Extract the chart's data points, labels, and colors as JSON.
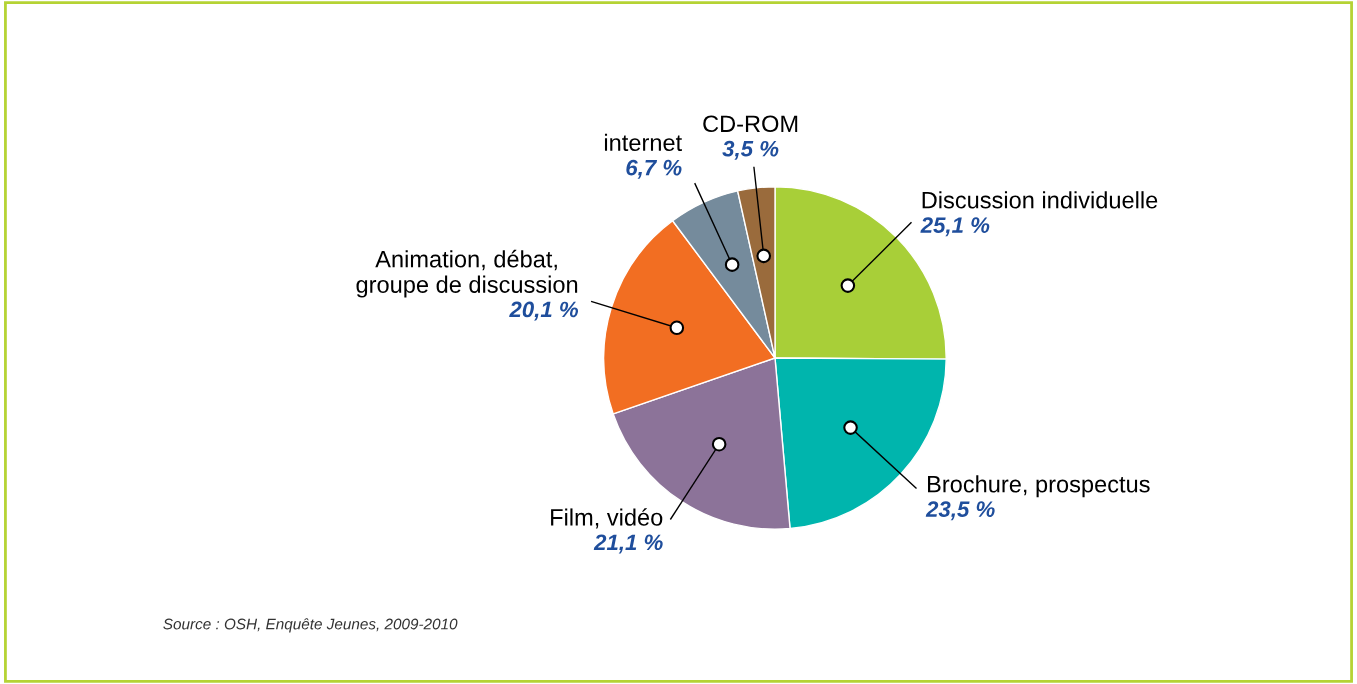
{
  "chart_data": {
    "type": "pie",
    "categories": [
      "Discussion individuelle",
      "Brochure, prospectus",
      "Film, vidéo",
      "Animation, débat,\ngroupe de discussion",
      "internet",
      "CD-ROM"
    ],
    "values": [
      25.1,
      23.5,
      21.1,
      20.1,
      6.7,
      3.5
    ],
    "value_labels": [
      "25,1 %",
      "23,5 %",
      "21,1 %",
      "20,1 %",
      "6,7 %",
      "3,5 %"
    ],
    "colors": [
      "#a8cf38",
      "#00b5ad",
      "#8c7399",
      "#f26e22",
      "#758b9c",
      "#9a6b3c"
    ],
    "annotations": [
      "Source : OSH, Enquête Jeunes, 2009-2010"
    ],
    "legend": false
  }
}
